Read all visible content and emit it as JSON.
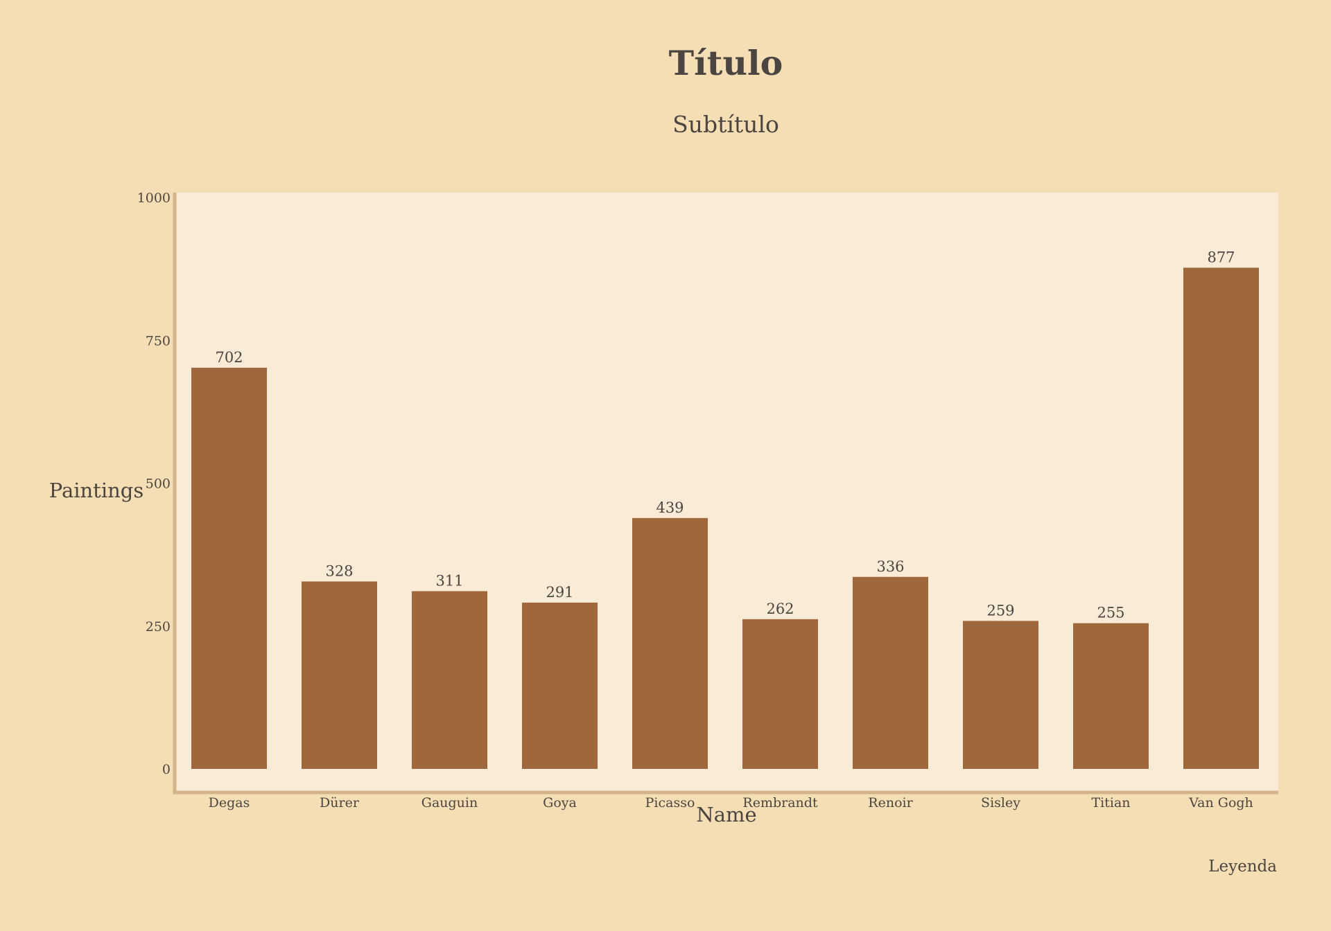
{
  "chart_data": {
    "type": "bar",
    "title": "Título",
    "subtitle": "Subtítulo",
    "xlabel": "Name",
    "ylabel": "Paintings",
    "legend_title": "Leyenda",
    "categories": [
      "Degas",
      "Dürer",
      "Gauguin",
      "Goya",
      "Picasso",
      "Rembrandt",
      "Renoir",
      "Sisley",
      "Titian",
      "Van Gogh"
    ],
    "values": [
      702,
      328,
      311,
      291,
      439,
      262,
      336,
      259,
      255,
      877
    ],
    "ylim": [
      0,
      1000
    ],
    "yticks": [
      0,
      250,
      500,
      750,
      1000
    ],
    "grid": false,
    "legend_position": "bottom-right",
    "colors": {
      "background": "#f6deb4",
      "plot_background": "#faebd6",
      "bar": "#a0673c",
      "axis": "#d4b48a",
      "text": "#4a4540"
    }
  }
}
